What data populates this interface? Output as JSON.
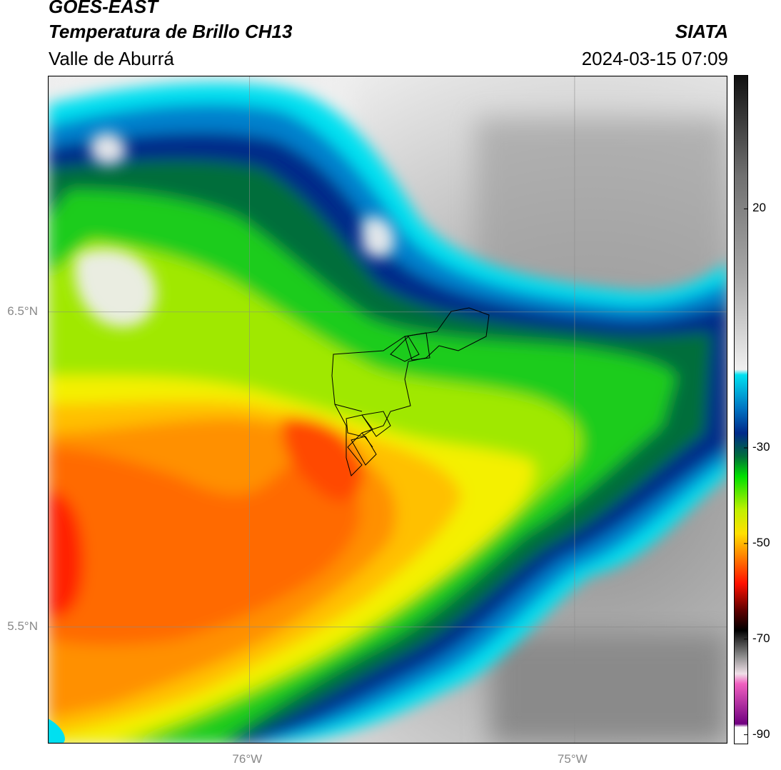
{
  "header": {
    "satellite": "GOES-EAST",
    "product": "Temperatura de Brillo CH13",
    "region": "Valle de Aburrá",
    "organization": "SIATA",
    "timestamp": "2024-03-15 07:09"
  },
  "map": {
    "lon_range": [
      -76.62,
      -74.53
    ],
    "lat_range": [
      5.13,
      7.25
    ],
    "grid": true,
    "lat_labels": [
      {
        "value": 6.5,
        "label": "6.5°N"
      },
      {
        "value": 5.5,
        "label": "5.5°N"
      }
    ],
    "lon_labels": [
      {
        "value": -76,
        "label": "76°W"
      },
      {
        "value": -75,
        "label": "75°W"
      }
    ]
  },
  "colorbar": {
    "range": [
      -92,
      48
    ],
    "labels": [
      "20",
      "-30",
      "-50",
      "-70",
      "-90"
    ],
    "label_values": [
      20,
      -30,
      -50,
      -70,
      -90
    ]
  },
  "colors": {
    "clear_sky_warm": "#8a8a8a",
    "clear_sky_cool": "#f0f0f0",
    "cyan": "#00e0f0",
    "deep_blue": "#002a8a",
    "green": "#1ecc1e",
    "yellow": "#f4f000",
    "orange": "#ff9000",
    "red": "#ff2000",
    "magenta": "#c020c0"
  }
}
